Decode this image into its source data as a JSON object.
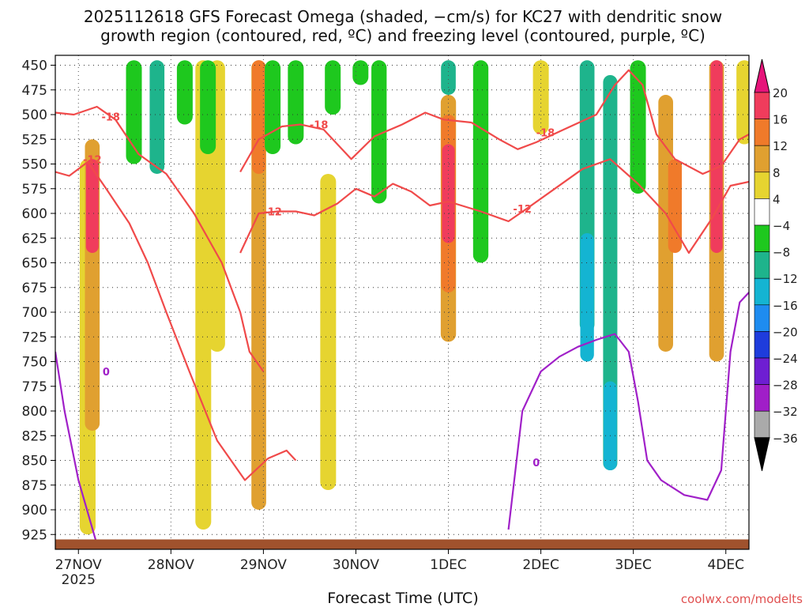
{
  "chart_data": {
    "type": "heatmap",
    "title_line1": "2025112618 GFS Forecast Omega (shaded, −cm/s) for KC27 with dendritic snow",
    "title_line2": "growth region (contoured, red, ºC) and freezing level (contoured, purple, ºC)",
    "xlabel": "Forecast Time (UTC)",
    "ylabel": "",
    "credit": "coolwx.com/modelts",
    "y_axis": {
      "unit": "hPa",
      "inverted": true,
      "range": [
        440,
        940
      ],
      "ticks": [
        450,
        475,
        500,
        525,
        550,
        575,
        600,
        625,
        650,
        675,
        700,
        725,
        750,
        775,
        800,
        825,
        850,
        875,
        900,
        925
      ]
    },
    "x_axis": {
      "unit": "days since 26NOV 18Z",
      "range": [
        0,
        7.5
      ],
      "ticks": [
        {
          "value": 0.25,
          "label": "27NOV",
          "sublabel": "2025"
        },
        {
          "value": 1.25,
          "label": "28NOV",
          "sublabel": ""
        },
        {
          "value": 2.25,
          "label": "29NOV",
          "sublabel": ""
        },
        {
          "value": 3.25,
          "label": "30NOV",
          "sublabel": ""
        },
        {
          "value": 4.25,
          "label": "1DEC",
          "sublabel": ""
        },
        {
          "value": 5.25,
          "label": "2DEC",
          "sublabel": ""
        },
        {
          "value": 6.25,
          "label": "3DEC",
          "sublabel": ""
        },
        {
          "value": 7.25,
          "label": "4DEC",
          "sublabel": ""
        }
      ]
    },
    "colorbar": {
      "labels": [
        "20",
        "16",
        "12",
        "8",
        "4",
        "−4",
        "−8",
        "−12",
        "−16",
        "−20",
        "−24",
        "−28",
        "−32",
        "−36"
      ],
      "bins": [
        {
          "lo": 16,
          "hi": 20,
          "color": "#f03c5c"
        },
        {
          "lo": 12,
          "hi": 16,
          "color": "#f07a2a"
        },
        {
          "lo": 8,
          "hi": 12,
          "color": "#e0a030"
        },
        {
          "lo": 4,
          "hi": 8,
          "color": "#e6d430"
        },
        {
          "lo": -4,
          "hi": 4,
          "color": "#ffffff"
        },
        {
          "lo": -8,
          "hi": -4,
          "color": "#1ec81e"
        },
        {
          "lo": -12,
          "hi": -8,
          "color": "#1eb48c"
        },
        {
          "lo": -16,
          "hi": -12,
          "color": "#14b4d2"
        },
        {
          "lo": -20,
          "hi": -16,
          "color": "#1e8cf0"
        },
        {
          "lo": -24,
          "hi": -20,
          "color": "#1e3cdc"
        },
        {
          "lo": -28,
          "hi": -24,
          "color": "#6e1ed2"
        },
        {
          "lo": -32,
          "hi": -28,
          "color": "#a01ec8"
        },
        {
          "lo": -36,
          "hi": -32,
          "color": "#aaaaaa"
        }
      ],
      "over_color": "#e6147a",
      "under_color": "#000000"
    },
    "omega_features": [
      {
        "t": 0.35,
        "p0": 545,
        "p1": 925,
        "value": 6
      },
      {
        "t": 0.4,
        "p0": 525,
        "p1": 820,
        "value": 10
      },
      {
        "t": 0.4,
        "p0": 545,
        "p1": 640,
        "value": 18
      },
      {
        "t": 0.85,
        "p0": 445,
        "p1": 550,
        "value": -6
      },
      {
        "t": 1.1,
        "p0": 445,
        "p1": 560,
        "value": -10
      },
      {
        "t": 1.4,
        "p0": 445,
        "p1": 510,
        "value": -6
      },
      {
        "t": 1.6,
        "p0": 445,
        "p1": 920,
        "value": 6
      },
      {
        "t": 1.75,
        "p0": 445,
        "p1": 740,
        "value": 6
      },
      {
        "t": 1.65,
        "p0": 445,
        "p1": 540,
        "value": -6
      },
      {
        "t": 2.2,
        "p0": 445,
        "p1": 900,
        "value": 10
      },
      {
        "t": 2.2,
        "p0": 445,
        "p1": 560,
        "value": 14
      },
      {
        "t": 2.35,
        "p0": 445,
        "p1": 540,
        "value": -6
      },
      {
        "t": 2.6,
        "p0": 445,
        "p1": 530,
        "value": -6
      },
      {
        "t": 2.95,
        "p0": 560,
        "p1": 880,
        "value": 6
      },
      {
        "t": 3.0,
        "p0": 445,
        "p1": 500,
        "value": -6
      },
      {
        "t": 3.3,
        "p0": 445,
        "p1": 470,
        "value": -6
      },
      {
        "t": 3.5,
        "p0": 445,
        "p1": 590,
        "value": -8
      },
      {
        "t": 4.25,
        "p0": 445,
        "p1": 480,
        "value": -10
      },
      {
        "t": 4.25,
        "p0": 480,
        "p1": 730,
        "value": 8
      },
      {
        "t": 4.25,
        "p0": 500,
        "p1": 680,
        "value": 12
      },
      {
        "t": 4.25,
        "p0": 530,
        "p1": 630,
        "value": 18
      },
      {
        "t": 4.6,
        "p0": 445,
        "p1": 650,
        "value": -8
      },
      {
        "t": 5.25,
        "p0": 445,
        "p1": 520,
        "value": 6
      },
      {
        "t": 5.75,
        "p0": 445,
        "p1": 720,
        "value": -10
      },
      {
        "t": 5.75,
        "p0": 620,
        "p1": 750,
        "value": -14
      },
      {
        "t": 6.0,
        "p0": 460,
        "p1": 860,
        "value": -12
      },
      {
        "t": 6.0,
        "p0": 770,
        "p1": 860,
        "value": -16
      },
      {
        "t": 6.3,
        "p0": 445,
        "p1": 580,
        "value": -6
      },
      {
        "t": 6.6,
        "p0": 480,
        "p1": 740,
        "value": 10
      },
      {
        "t": 6.7,
        "p0": 545,
        "p1": 640,
        "value": 14
      },
      {
        "t": 7.15,
        "p0": 445,
        "p1": 750,
        "value": 10
      },
      {
        "t": 7.15,
        "p0": 445,
        "p1": 640,
        "value": 20
      },
      {
        "t": 7.45,
        "p0": 445,
        "p1": 530,
        "value": 6
      }
    ],
    "contours": [
      {
        "name": "dgz-top-18",
        "color": "#f04a4a",
        "label": "-18",
        "label_at": [
          0.6,
          502
        ],
        "points": [
          [
            0,
            498
          ],
          [
            0.2,
            500
          ],
          [
            0.45,
            492
          ],
          [
            0.65,
            505
          ],
          [
            0.9,
            540
          ],
          [
            1.2,
            560
          ],
          [
            1.5,
            600
          ],
          [
            1.8,
            650
          ],
          [
            2.0,
            700
          ],
          [
            2.1,
            740
          ],
          [
            2.25,
            760
          ]
        ]
      },
      {
        "name": "dgz-bottom-12",
        "color": "#f04a4a",
        "label": "-12",
        "label_at": [
          0.4,
          545
        ],
        "points": [
          [
            0,
            558
          ],
          [
            0.15,
            562
          ],
          [
            0.35,
            548
          ],
          [
            0.55,
            575
          ],
          [
            0.8,
            610
          ],
          [
            1.0,
            650
          ],
          [
            1.2,
            700
          ],
          [
            1.45,
            760
          ],
          [
            1.75,
            830
          ],
          [
            2.05,
            870
          ],
          [
            2.3,
            848
          ],
          [
            2.5,
            840
          ],
          [
            2.6,
            850
          ]
        ]
      },
      {
        "name": "dgz-top-18-mid",
        "color": "#f04a4a",
        "label": "-18",
        "label_at": [
          2.85,
          510
        ],
        "points": [
          [
            2.0,
            558
          ],
          [
            2.2,
            525
          ],
          [
            2.45,
            512
          ],
          [
            2.65,
            510
          ],
          [
            2.9,
            515
          ],
          [
            3.2,
            545
          ],
          [
            3.45,
            522
          ],
          [
            3.75,
            510
          ],
          [
            4.0,
            498
          ],
          [
            4.2,
            505
          ],
          [
            4.5,
            508
          ]
        ]
      },
      {
        "name": "dgz-bottom-12-mid",
        "color": "#f04a4a",
        "label": "-12",
        "label_at": [
          2.35,
          598
        ],
        "points": [
          [
            2.0,
            640
          ],
          [
            2.2,
            600
          ],
          [
            2.4,
            598
          ],
          [
            2.6,
            598
          ],
          [
            2.8,
            602
          ],
          [
            3.05,
            590
          ],
          [
            3.25,
            575
          ],
          [
            3.45,
            583
          ],
          [
            3.65,
            570
          ],
          [
            3.85,
            578
          ],
          [
            4.05,
            592
          ],
          [
            4.25,
            588
          ]
        ]
      },
      {
        "name": "dgz-top-18-east",
        "color": "#f04a4a",
        "label": "-18",
        "label_at": [
          5.3,
          518
        ],
        "points": [
          [
            4.5,
            508
          ],
          [
            4.8,
            525
          ],
          [
            5.0,
            535
          ],
          [
            5.2,
            528
          ],
          [
            5.5,
            515
          ],
          [
            5.85,
            500
          ],
          [
            6.05,
            470
          ],
          [
            6.2,
            455
          ],
          [
            6.35,
            470
          ],
          [
            6.5,
            520
          ],
          [
            6.7,
            545
          ],
          [
            7.0,
            560
          ],
          [
            7.2,
            552
          ],
          [
            7.4,
            525
          ],
          [
            7.5,
            520
          ]
        ]
      },
      {
        "name": "dgz-bottom-12-east",
        "color": "#f04a4a",
        "label": "-12",
        "label_at": [
          5.05,
          595
        ],
        "points": [
          [
            4.25,
            588
          ],
          [
            4.6,
            598
          ],
          [
            4.9,
            608
          ],
          [
            5.1,
            595
          ],
          [
            5.4,
            575
          ],
          [
            5.7,
            555
          ],
          [
            6.0,
            545
          ],
          [
            6.3,
            570
          ],
          [
            6.6,
            600
          ],
          [
            6.85,
            640
          ],
          [
            7.1,
            605
          ],
          [
            7.3,
            572
          ],
          [
            7.5,
            568
          ]
        ]
      },
      {
        "name": "freezing-level-0-west",
        "color": "#a020c8",
        "label": "0",
        "label_at": [
          0.55,
          760
        ],
        "points": [
          [
            0.0,
            740
          ],
          [
            0.1,
            800
          ],
          [
            0.25,
            870
          ],
          [
            0.45,
            935
          ]
        ]
      },
      {
        "name": "freezing-level-0-east",
        "color": "#a020c8",
        "label": "0",
        "label_at": [
          5.2,
          852
        ],
        "points": [
          [
            4.9,
            920
          ],
          [
            5.05,
            800
          ],
          [
            5.25,
            760
          ],
          [
            5.45,
            745
          ],
          [
            5.65,
            735
          ],
          [
            5.85,
            728
          ],
          [
            6.05,
            722
          ],
          [
            6.2,
            740
          ],
          [
            6.3,
            790
          ],
          [
            6.4,
            850
          ],
          [
            6.55,
            870
          ],
          [
            6.8,
            885
          ],
          [
            7.05,
            890
          ],
          [
            7.2,
            860
          ],
          [
            7.3,
            740
          ],
          [
            7.4,
            690
          ],
          [
            7.5,
            680
          ]
        ]
      }
    ],
    "terrain_surface_hpa": 930,
    "terrain_color": "#a0522d"
  }
}
